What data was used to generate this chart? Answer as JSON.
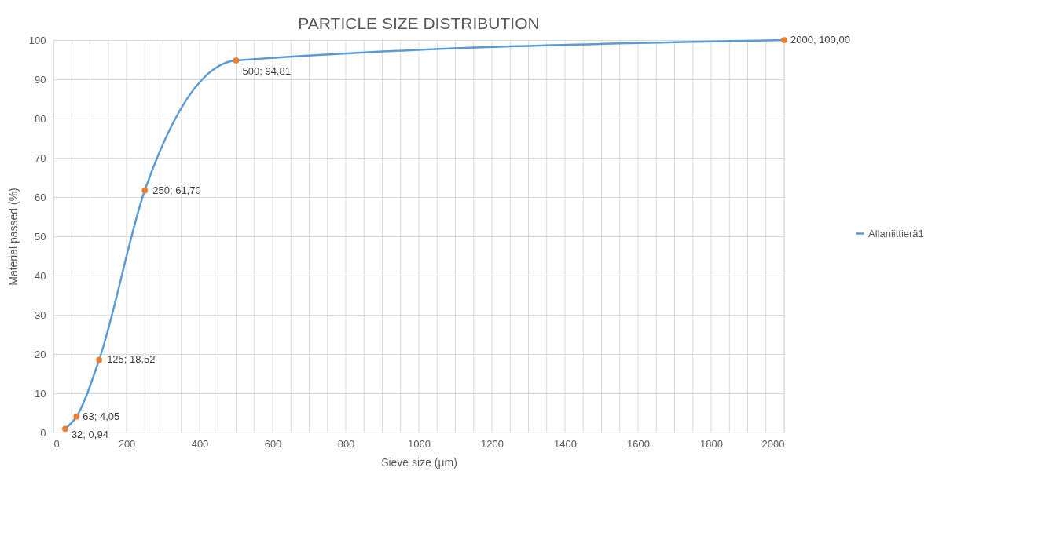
{
  "chart_data": {
    "type": "line",
    "title": "PARTICLE SIZE DISTRIBUTION",
    "xlabel": "Sieve size (µm)",
    "ylabel": "Material passed  (%)",
    "xlim": [
      0,
      2000
    ],
    "ylim": [
      0,
      100
    ],
    "xticks": [
      0,
      {
        "value": 50,
        "label": null
      },
      {
        "value": 100,
        "label": null
      },
      {
        "value": 150,
        "label": null
      },
      200,
      {
        "value": 250,
        "label": null
      },
      {
        "value": 300,
        "label": null
      },
      {
        "value": 350,
        "label": null
      },
      400,
      {
        "value": 450,
        "label": null
      },
      {
        "value": 500,
        "label": null
      },
      {
        "value": 550,
        "label": null
      },
      600,
      {
        "value": 650,
        "label": null
      },
      {
        "value": 700,
        "label": null
      },
      {
        "value": 750,
        "label": null
      },
      800,
      {
        "value": 850,
        "label": null
      },
      {
        "value": 900,
        "label": null
      },
      {
        "value": 950,
        "label": null
      },
      1000,
      {
        "value": 1050,
        "label": null
      },
      {
        "value": 1100,
        "label": null
      },
      {
        "value": 1150,
        "label": null
      },
      1200,
      {
        "value": 1250,
        "label": null
      },
      {
        "value": 1300,
        "label": null
      },
      {
        "value": 1350,
        "label": null
      },
      1400,
      {
        "value": 1450,
        "label": null
      },
      {
        "value": 1500,
        "label": null
      },
      {
        "value": 1550,
        "label": null
      },
      1600,
      {
        "value": 1650,
        "label": null
      },
      {
        "value": 1700,
        "label": null
      },
      {
        "value": 1750,
        "label": null
      },
      1800,
      {
        "value": 1850,
        "label": null
      },
      {
        "value": 1900,
        "label": null
      },
      {
        "value": 1950,
        "label": null
      },
      2000
    ],
    "yticks": [
      0,
      10,
      20,
      30,
      40,
      50,
      60,
      70,
      80,
      90,
      100
    ],
    "grid": true,
    "legend": "right",
    "marker": "circle",
    "line_style": "solid",
    "series": [
      {
        "name": "Allaniittierä1",
        "color": "#5b9bd5",
        "colors": [
          "#ed7d31",
          "#ed7d31",
          "#ed7d31",
          "#ed7d31",
          "#ed7d31",
          "#ed7d31"
        ],
        "x": [
          32,
          63,
          125,
          250,
          500,
          2000
        ],
        "values": [
          0.94,
          4.05,
          18.52,
          61.7,
          94.81,
          100.0
        ],
        "value_labels": [
          "32; 0,94",
          "63; 4,05",
          "125; 18,52",
          "250; 61,70",
          "500; 94,81",
          "2000; 100,00"
        ]
      }
    ]
  }
}
